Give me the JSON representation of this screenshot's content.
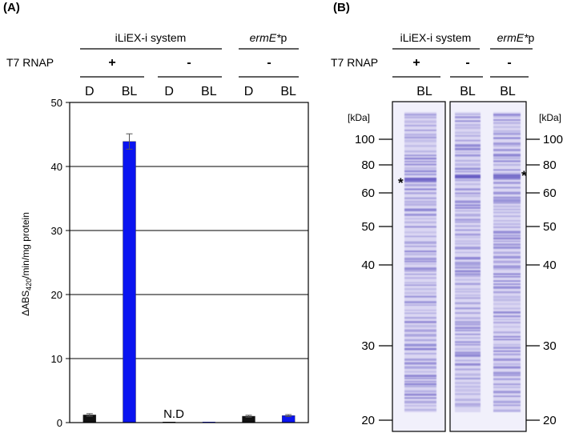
{
  "panels": {
    "a_label": "(A)",
    "b_label": "(B)"
  },
  "panel_a": {
    "group_system": "iLiEX-i system",
    "group_ermE": "ermE*",
    "group_ermE_suffix": "p",
    "t7_label": "T7 RNAP",
    "t7_states": [
      "+",
      "-",
      "-"
    ],
    "conditions": [
      "D",
      "BL",
      "D",
      "BL",
      "D",
      "BL"
    ],
    "nd_label": "N.D"
  },
  "chart_data": {
    "type": "bar",
    "title": "",
    "ylabel_main": "ΔABS",
    "ylabel_sub": "420",
    "ylabel_rest": "/min/mg protein",
    "xlabel": "",
    "ylim": [
      0,
      50
    ],
    "yticks": [
      0,
      10,
      20,
      30,
      40,
      50
    ],
    "grid": true,
    "categories": [
      "D",
      "BL",
      "D",
      "BL",
      "D",
      "BL"
    ],
    "values": [
      1.2,
      43.9,
      0,
      0,
      1.0,
      1.1
    ],
    "errors": [
      0.2,
      1.2,
      0,
      0,
      0.15,
      0.15
    ],
    "bar_colors": [
      "#111111",
      "#0a14f0",
      "#111111",
      "#0a14f0",
      "#111111",
      "#0a14f0"
    ],
    "annotation": "N.D"
  },
  "panel_b": {
    "group_system": "iLiEX-i system",
    "group_ermE": "ermE*",
    "group_ermE_suffix": "p",
    "t7_label": "T7 RNAP",
    "t7_states": [
      "+",
      "-",
      "-"
    ],
    "lanes": [
      "BL",
      "BL",
      "BL"
    ],
    "kda_label": "[kDa]",
    "markers": [
      100,
      80,
      60,
      50,
      40,
      30,
      20
    ],
    "asterisk": "*",
    "gel_color": "#5b4fbf"
  }
}
